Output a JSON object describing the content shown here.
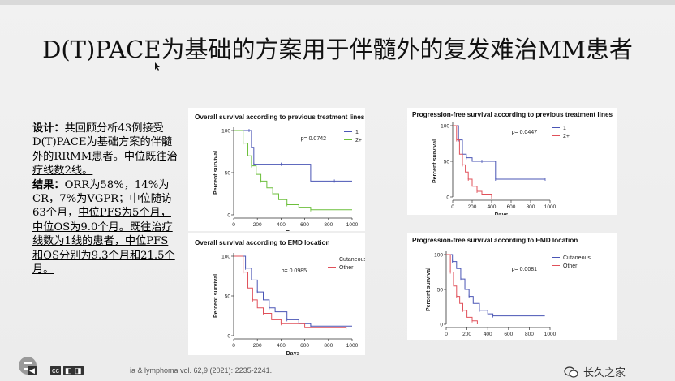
{
  "slide": {
    "title": "D(T)PACE为基础的方案用于伴髓外的复发难治MM患者",
    "text_paragraphs": [
      {
        "label": "设计：",
        "text": "共回顾分析43例接受D(T)PACE为基础方案的伴髓外的RRMM患者。",
        "underlined": "中位既往治疗线数2线。"
      },
      {
        "label": "结果：",
        "text": "ORR为58%，14%为CR，7%为VGPR；中位随访63个月，",
        "underlined": "中位PFS为5个月，中位OS为9.0个月。既往治疗线数为1线的患者，中位PFS和OS分别为9.3个月和21.5个月。"
      }
    ],
    "reference": "ia & lymphoma vol. 62,9 (2021): 2235-2241.",
    "watermark": "长久之家",
    "player_controls": [
      "cc",
      "◧",
      "◨"
    ]
  },
  "chart_data": [
    {
      "type": "line",
      "title": "Overall survival according to previous treatment lines",
      "ylabel": "Percent survival",
      "xlabel": "Days",
      "xlim": [
        0,
        1000
      ],
      "ylim": [
        0,
        100
      ],
      "xticks": [
        0,
        200,
        400,
        600,
        800,
        1000
      ],
      "yticks": [
        0,
        50,
        100
      ],
      "p_value": "p= 0.0742",
      "legend_position": "top-right",
      "series": [
        {
          "name": "1",
          "color": "#4a55b5",
          "x": [
            0,
            130,
            150,
            170,
            200,
            400,
            650,
            850,
            1000
          ],
          "y": [
            100,
            100,
            80,
            60,
            60,
            60,
            40,
            40,
            40
          ]
        },
        {
          "name": "2+",
          "color": "#6cbf3c",
          "x": [
            0,
            80,
            120,
            150,
            190,
            230,
            280,
            330,
            380,
            450,
            550,
            650,
            1000
          ],
          "y": [
            100,
            85,
            70,
            58,
            48,
            40,
            32,
            25,
            18,
            12,
            9,
            6,
            6
          ]
        }
      ]
    },
    {
      "type": "line",
      "title": "Progression-free survival according to previous treatment lines",
      "ylabel": "Percent survival",
      "xlabel": "Days",
      "xlim": [
        0,
        1000
      ],
      "ylim": [
        0,
        100
      ],
      "xticks": [
        0,
        200,
        400,
        600,
        800,
        1000
      ],
      "yticks": [
        0,
        50,
        100
      ],
      "p_value": "p= 0.0447",
      "legend_position": "top-right",
      "series": [
        {
          "name": "1",
          "color": "#4a55b5",
          "x": [
            0,
            60,
            100,
            140,
            200,
            300,
            400,
            440,
            600,
            950
          ],
          "y": [
            100,
            80,
            60,
            55,
            50,
            50,
            50,
            25,
            25,
            25
          ]
        },
        {
          "name": "2+",
          "color": "#e0505a",
          "x": [
            0,
            40,
            70,
            100,
            130,
            160,
            200,
            250,
            300,
            400
          ],
          "y": [
            100,
            80,
            60,
            45,
            35,
            25,
            15,
            8,
            4,
            0
          ]
        }
      ]
    },
    {
      "type": "line",
      "title": "Overall survival according to EMD location",
      "ylabel": "Percent survival",
      "xlabel": "Days",
      "xlim": [
        0,
        1000
      ],
      "ylim": [
        0,
        100
      ],
      "xticks": [
        0,
        200,
        400,
        600,
        800,
        1000
      ],
      "yticks": [
        0,
        50,
        100
      ],
      "p_value": "p= 0.0985",
      "legend_position": "top-right",
      "series": [
        {
          "name": "Cutaneous",
          "color": "#4a55b5",
          "x": [
            0,
            100,
            150,
            200,
            250,
            300,
            350,
            450,
            550,
            650,
            1000
          ],
          "y": [
            100,
            85,
            70,
            55,
            45,
            35,
            30,
            20,
            15,
            12,
            12
          ]
        },
        {
          "name": "Other",
          "color": "#e0505a",
          "x": [
            0,
            80,
            120,
            160,
            200,
            250,
            320,
            400,
            600,
            950
          ],
          "y": [
            100,
            80,
            60,
            45,
            35,
            28,
            20,
            15,
            10,
            10
          ]
        }
      ]
    },
    {
      "type": "line",
      "title": "Progression-free survival according to EMD location",
      "ylabel": "Percent survival",
      "xlabel": "Days",
      "xlim": [
        0,
        1000
      ],
      "ylim": [
        0,
        100
      ],
      "xticks": [
        0,
        200,
        400,
        600,
        800,
        1000
      ],
      "yticks": [
        0,
        50,
        100
      ],
      "p_value": "p= 0.0081",
      "legend_position": "top-right",
      "series": [
        {
          "name": "Cutaneous",
          "color": "#4a55b5",
          "x": [
            0,
            60,
            100,
            140,
            180,
            220,
            260,
            320,
            400,
            450,
            950
          ],
          "y": [
            100,
            90,
            80,
            65,
            50,
            40,
            30,
            20,
            15,
            12,
            12
          ]
        },
        {
          "name": "Other",
          "color": "#e0505a",
          "x": [
            0,
            40,
            70,
            100,
            130,
            160,
            200,
            250,
            300
          ],
          "y": [
            100,
            75,
            55,
            40,
            30,
            20,
            10,
            5,
            0
          ]
        }
      ]
    }
  ]
}
